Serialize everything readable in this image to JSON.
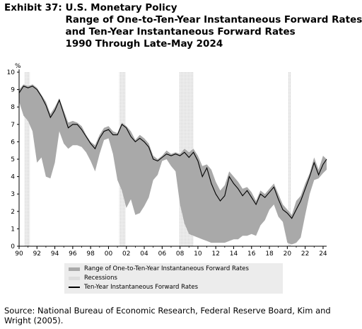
{
  "exhibit_label": "Exhibit 37: ",
  "title_lines": [
    "U.S. Monetary Policy",
    "Range of One-to-Ten-Year Instantaneous Forward Rates",
    "and Ten-Year Instantaneous Forward Rates",
    "1990 Through Late-May 2024"
  ],
  "source": "Source: National Bureau of Economic Research, Federal Reserve Board, Kim and Wright (2005).",
  "chart_data": {
    "type": "area",
    "title": "Range of One-to-Ten-Year Instantaneous Forward Rates and Ten-Year Instantaneous Forward Rates 1990 Through Late-May 2024",
    "unit_label": "%",
    "xlim": [
      1990,
      2024.4
    ],
    "ylim": [
      0,
      10
    ],
    "y_ticks": [
      "0",
      "1",
      "2",
      "3",
      "4",
      "5",
      "6",
      "7",
      "8",
      "9",
      "10"
    ],
    "x_ticks": [
      {
        "value": 1990,
        "label": "90"
      },
      {
        "value": 1992,
        "label": "92"
      },
      {
        "value": 1994,
        "label": "94"
      },
      {
        "value": 1996,
        "label": "96"
      },
      {
        "value": 1998,
        "label": "98"
      },
      {
        "value": 2000,
        "label": "00"
      },
      {
        "value": 2002,
        "label": "02"
      },
      {
        "value": 2004,
        "label": "04"
      },
      {
        "value": 2006,
        "label": "06"
      },
      {
        "value": 2008,
        "label": "08"
      },
      {
        "value": 2010,
        "label": "10"
      },
      {
        "value": 2012,
        "label": "12"
      },
      {
        "value": 2014,
        "label": "14"
      },
      {
        "value": 2016,
        "label": "16"
      },
      {
        "value": 2018,
        "label": "18"
      },
      {
        "value": 2020,
        "label": "20"
      },
      {
        "value": 2022,
        "label": "22"
      },
      {
        "value": 2024,
        "label": "24"
      }
    ],
    "legend": [
      {
        "label": "Range of One-to-Ten-Year Instantaneous Forward Rates",
        "color": "#a9a9a9"
      },
      {
        "label": "Recessions",
        "color": "#dddddd"
      },
      {
        "label": "Ten-Year Instantaneous Forward Rates",
        "color": "#000000"
      }
    ],
    "recessions": [
      [
        1990.6,
        1991.2
      ],
      [
        2001.2,
        2001.9
      ],
      [
        2007.9,
        2009.5
      ],
      [
        2020.1,
        2020.4
      ]
    ],
    "range_x": [
      1990,
      1990.5,
      1991,
      1991.5,
      1992,
      1992.5,
      1993,
      1993.5,
      1994,
      1994.5,
      1995,
      1995.5,
      1996,
      1996.5,
      1997,
      1997.5,
      1998,
      1998.5,
      1999,
      1999.5,
      2000,
      2000.5,
      2001,
      2001.5,
      2002,
      2002.5,
      2003,
      2003.5,
      2004,
      2004.5,
      2005,
      2005.5,
      2006,
      2006.5,
      2007,
      2007.5,
      2008,
      2008.5,
      2009,
      2009.5,
      2010,
      2010.5,
      2011,
      2011.5,
      2012,
      2012.5,
      2013,
      2013.5,
      2014,
      2014.5,
      2015,
      2015.5,
      2016,
      2016.5,
      2017,
      2017.5,
      2018,
      2018.5,
      2019,
      2019.5,
      2020,
      2020.5,
      2021,
      2021.5,
      2022,
      2022.5,
      2023,
      2023.5,
      2024,
      2024.4
    ],
    "range_upper": [
      9.0,
      9.3,
      9.2,
      9.3,
      9.1,
      8.7,
      8.3,
      7.6,
      8.0,
      8.5,
      7.8,
      7.1,
      7.2,
      7.1,
      6.9,
      6.4,
      6.0,
      5.8,
      6.4,
      6.8,
      6.9,
      6.6,
      6.5,
      7.1,
      6.9,
      6.6,
      6.1,
      6.4,
      6.2,
      5.9,
      5.2,
      5.0,
      5.2,
      5.5,
      5.3,
      5.4,
      5.3,
      5.6,
      5.4,
      5.6,
      5.2,
      4.6,
      4.7,
      4.4,
      3.7,
      3.2,
      3.5,
      4.3,
      4.0,
      3.7,
      3.3,
      3.4,
      3.1,
      2.6,
      3.2,
      3.0,
      3.3,
      3.6,
      3.0,
      2.4,
      2.1,
      1.8,
      2.6,
      2.9,
      3.6,
      4.2,
      5.1,
      4.4,
      5.2,
      5.0
    ],
    "range_lower": [
      8.3,
      7.5,
      7.2,
      6.6,
      4.8,
      5.1,
      4.0,
      3.9,
      4.8,
      6.6,
      5.9,
      5.6,
      5.8,
      5.8,
      5.7,
      5.4,
      4.9,
      4.3,
      5.3,
      6.1,
      6.2,
      5.3,
      3.8,
      3.2,
      2.2,
      2.7,
      1.8,
      1.9,
      2.3,
      2.8,
      3.8,
      4.1,
      4.9,
      5.0,
      4.6,
      4.3,
      2.4,
      1.3,
      0.7,
      0.6,
      0.5,
      0.4,
      0.3,
      0.2,
      0.2,
      0.2,
      0.2,
      0.3,
      0.4,
      0.4,
      0.6,
      0.6,
      0.7,
      0.6,
      1.2,
      1.5,
      2.1,
      2.4,
      1.7,
      1.4,
      0.2,
      0.1,
      0.2,
      0.5,
      1.8,
      3.0,
      3.8,
      3.9,
      4.2,
      4.4
    ],
    "forward_x": [
      1990,
      1990.5,
      1991,
      1991.5,
      1992,
      1992.5,
      1993,
      1993.5,
      1994,
      1994.5,
      1995,
      1995.5,
      1996,
      1996.5,
      1997,
      1997.5,
      1998,
      1998.5,
      1999,
      1999.5,
      2000,
      2000.5,
      2001,
      2001.5,
      2002,
      2002.5,
      2003,
      2003.5,
      2004,
      2004.5,
      2005,
      2005.5,
      2006,
      2006.5,
      2007,
      2007.5,
      2008,
      2008.5,
      2009,
      2009.5,
      2010,
      2010.5,
      2011,
      2011.5,
      2012,
      2012.5,
      2013,
      2013.5,
      2014,
      2014.5,
      2015,
      2015.5,
      2016,
      2016.5,
      2017,
      2017.5,
      2018,
      2018.5,
      2019,
      2019.5,
      2020,
      2020.5,
      2021,
      2021.5,
      2022,
      2022.5,
      2023,
      2023.5,
      2024,
      2024.4
    ],
    "forward_values": [
      8.8,
      9.2,
      9.1,
      9.2,
      9.0,
      8.6,
      8.1,
      7.4,
      7.8,
      8.4,
      7.6,
      6.8,
      7.0,
      7.0,
      6.7,
      6.3,
      5.9,
      5.6,
      6.2,
      6.6,
      6.7,
      6.4,
      6.4,
      7.0,
      6.8,
      6.3,
      6.0,
      6.2,
      6.0,
      5.7,
      5.0,
      4.9,
      5.1,
      5.3,
      5.2,
      5.3,
      5.2,
      5.4,
      5.1,
      5.4,
      4.9,
      4.0,
      4.5,
      3.6,
      3.0,
      2.6,
      2.9,
      4.0,
      3.6,
      3.3,
      2.9,
      3.2,
      2.8,
      2.4,
      3.0,
      2.8,
      3.1,
      3.4,
      2.7,
      2.1,
      1.9,
      1.6,
      2.1,
      2.6,
      3.3,
      4.0,
      4.8,
      4.1,
      4.7,
      5.0
    ]
  }
}
